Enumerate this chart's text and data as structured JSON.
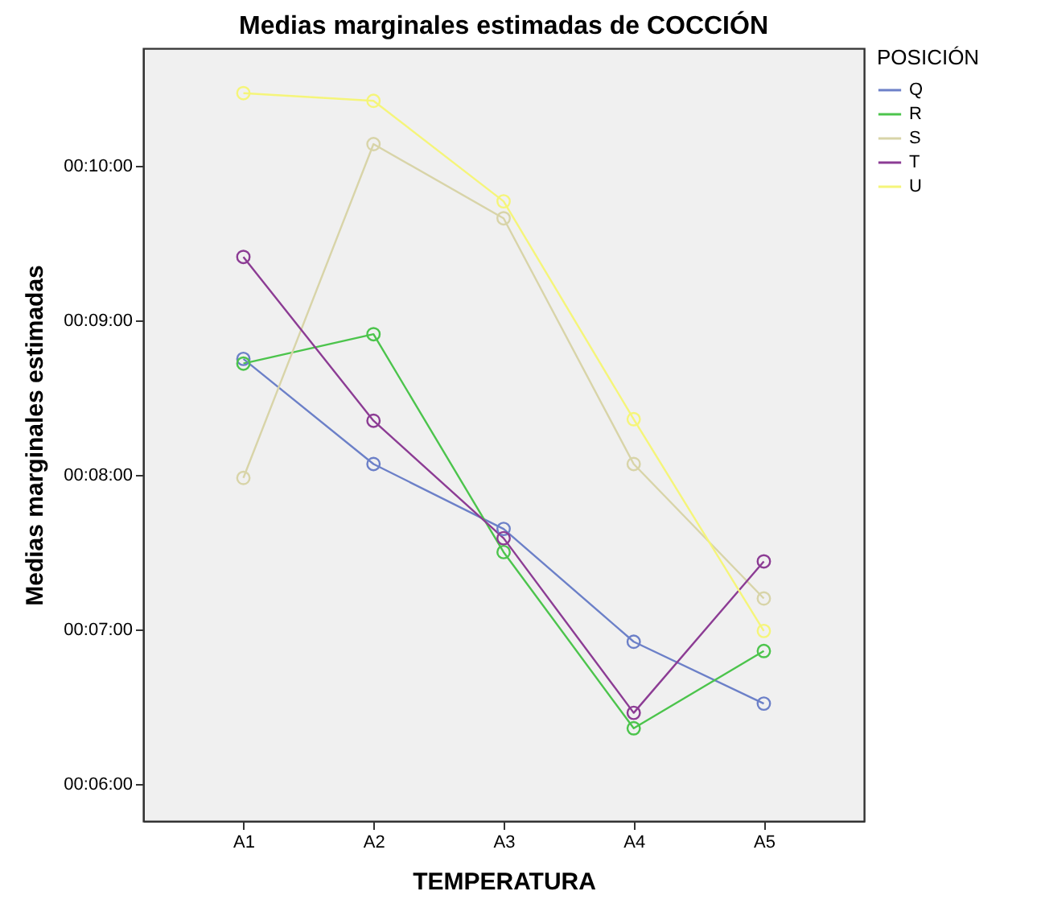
{
  "chart_data": {
    "type": "line",
    "title": "Medias marginales estimadas de COCCIÓN",
    "xlabel": "TEMPERATURA",
    "ylabel": "Medias marginales estimadas",
    "legend_title": "POSICIÓN",
    "categories": [
      "A1",
      "A2",
      "A3",
      "A4",
      "A5"
    ],
    "series": [
      {
        "name": "Q",
        "color": "#6c80c8",
        "values": [
          8.75,
          8.07,
          7.65,
          6.92,
          6.52
        ]
      },
      {
        "name": "R",
        "color": "#4cc44c",
        "values": [
          8.72,
          8.91,
          7.5,
          6.36,
          6.86
        ]
      },
      {
        "name": "S",
        "color": "#d8d4a8",
        "values": [
          7.98,
          10.14,
          9.66,
          8.07,
          7.2
        ]
      },
      {
        "name": "T",
        "color": "#8c3c94",
        "values": [
          9.41,
          8.35,
          7.59,
          6.46,
          7.44
        ]
      },
      {
        "name": "U",
        "color": "#f5f57a",
        "values": [
          10.47,
          10.42,
          9.77,
          8.36,
          6.99
        ]
      }
    ],
    "ylim": [
      5.76,
      10.76
    ],
    "yticks": [
      {
        "value": 6,
        "label": "00:06:00"
      },
      {
        "value": 7,
        "label": "00:07:00"
      },
      {
        "value": 8,
        "label": "00:08:00"
      },
      {
        "value": 9,
        "label": "00:09:00"
      },
      {
        "value": 10,
        "label": "00:10:00"
      }
    ],
    "grid": false,
    "legend": "top right",
    "marker": "circle",
    "line_style": "solid"
  }
}
